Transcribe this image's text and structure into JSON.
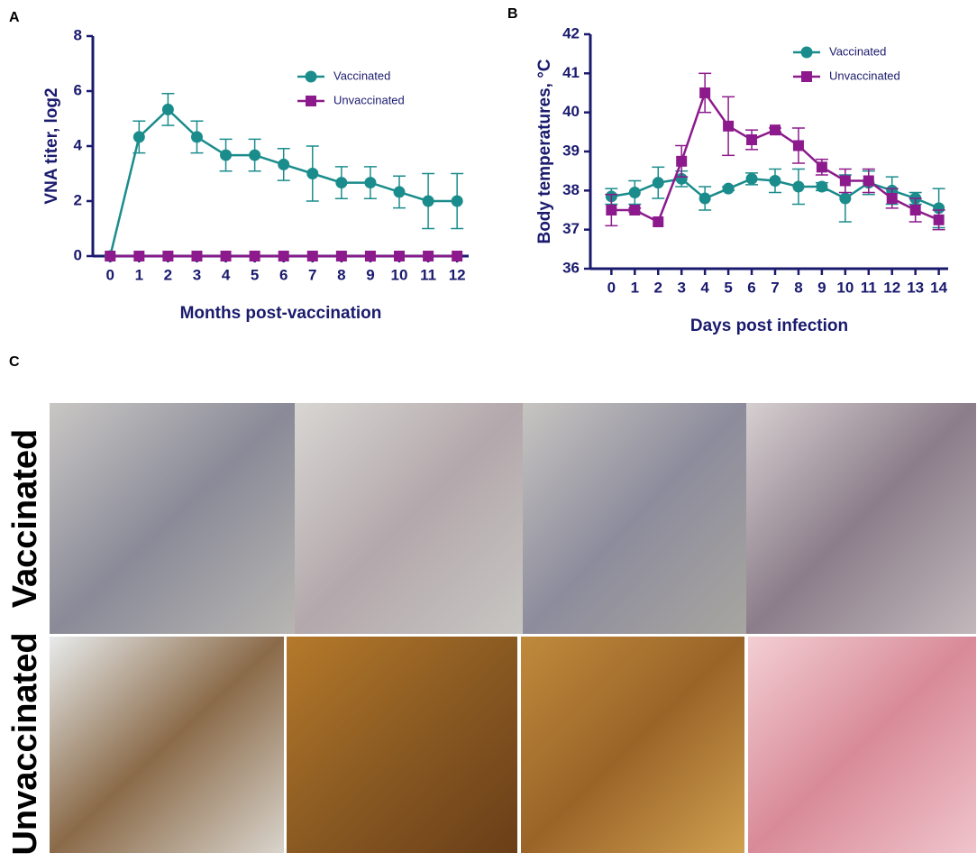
{
  "chart_data": [
    {
      "type": "line",
      "panel_label": "A",
      "x_label": "Months post-vaccination",
      "y_label": "VNA titer, log2",
      "x": [
        0,
        1,
        2,
        3,
        4,
        5,
        6,
        7,
        8,
        9,
        10,
        11,
        12
      ],
      "xlim": [
        -0.6,
        12.4
      ],
      "xticks": [
        0,
        1,
        2,
        3,
        4,
        5,
        6,
        7,
        8,
        9,
        10,
        11,
        12
      ],
      "ylim": [
        0,
        8
      ],
      "yticks": [
        0,
        2,
        4,
        6,
        8
      ],
      "series": [
        {
          "name": "Vaccinated",
          "color": "#1b8c8c",
          "marker": "circle",
          "values": [
            0,
            4.33,
            5.33,
            4.33,
            3.67,
            3.67,
            3.33,
            3,
            2.67,
            2.67,
            2.33,
            2,
            2
          ],
          "errors": [
            0,
            0.58,
            0.58,
            0.58,
            0.58,
            0.58,
            0.58,
            1,
            0.58,
            0.58,
            0.58,
            1,
            1
          ]
        },
        {
          "name": "Unvaccinated",
          "color": "#8c1a8c",
          "marker": "square",
          "values": [
            0,
            0,
            0,
            0,
            0,
            0,
            0,
            0,
            0,
            0,
            0,
            0,
            0
          ],
          "errors": [
            0,
            0,
            0,
            0,
            0,
            0,
            0,
            0,
            0,
            0,
            0,
            0,
            0
          ]
        }
      ]
    },
    {
      "type": "line",
      "panel_label": "B",
      "x_label": "Days post infection",
      "y_label": "Body temperatures, °C",
      "x": [
        0,
        1,
        2,
        3,
        4,
        5,
        6,
        7,
        8,
        9,
        10,
        11,
        12,
        13,
        14
      ],
      "xlim": [
        -0.9,
        14.4
      ],
      "xticks": [
        0,
        1,
        2,
        3,
        4,
        5,
        6,
        7,
        8,
        9,
        10,
        11,
        12,
        13,
        14
      ],
      "ylim": [
        36,
        42
      ],
      "yticks": [
        36,
        37,
        38,
        39,
        40,
        41,
        42
      ],
      "series": [
        {
          "name": "Vaccinated",
          "color": "#1b8c8c",
          "marker": "circle",
          "values": [
            37.85,
            37.95,
            38.2,
            38.3,
            37.8,
            38.05,
            38.3,
            38.25,
            38.1,
            38.1,
            37.8,
            38.2,
            38.0,
            37.8,
            37.55
          ],
          "errors": [
            0.2,
            0.3,
            0.4,
            0.2,
            0.3,
            0.05,
            0.15,
            0.3,
            0.45,
            0.1,
            0.6,
            0.3,
            0.35,
            0.15,
            0.5
          ]
        },
        {
          "name": "Unvaccinated",
          "color": "#8c1a8c",
          "marker": "square",
          "values": [
            37.5,
            37.5,
            37.2,
            38.75,
            40.5,
            39.65,
            39.3,
            39.55,
            39.15,
            38.6,
            38.25,
            38.25,
            37.8,
            37.5,
            37.25
          ],
          "errors": [
            0.4,
            0.05,
            0,
            0.4,
            0.5,
            0.75,
            0.25,
            0.05,
            0.45,
            0.2,
            0.3,
            0.3,
            0.25,
            0.3,
            0.25
          ]
        }
      ]
    }
  ],
  "photos": {
    "panel_label": "C",
    "row_labels": [
      "Vaccinated",
      "Unvaccinated"
    ]
  }
}
